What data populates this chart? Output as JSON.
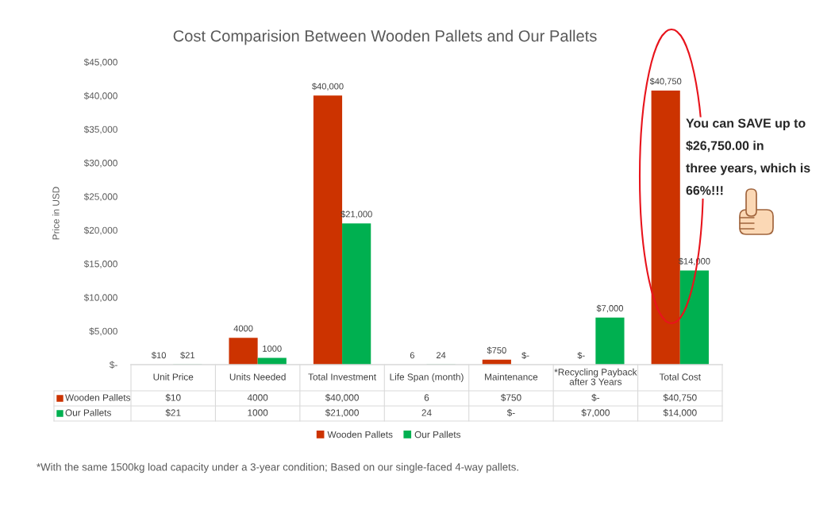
{
  "chart_data": {
    "type": "bar",
    "title": "Cost Comparision Between Wooden Pallets and Our Pallets",
    "ylabel": "Price in USD",
    "categories": [
      "Unit Price",
      "Units Needed",
      "Total Investment",
      "Life Span (month)",
      "Maintenance",
      "*Recycling Payback\nafter 3 Years",
      "Total Cost"
    ],
    "series": [
      {
        "name": "Wooden Pallets",
        "color": "#cc3300",
        "values": [
          10,
          4000,
          40000,
          6,
          750,
          0,
          40750
        ],
        "value_labels": [
          "$10",
          "4000",
          "$40,000",
          "6",
          "$750",
          "$-",
          "$40,750"
        ]
      },
      {
        "name": "Our Pallets",
        "color": "#00b050",
        "values": [
          21,
          1000,
          21000,
          24,
          0,
          7000,
          14000
        ],
        "value_labels": [
          "$21",
          "1000",
          "$21,000",
          "24",
          "$-",
          "$7,000",
          "$14,000"
        ]
      }
    ],
    "ylim": [
      0,
      45000
    ],
    "yticks": [
      {
        "value": 0,
        "label": "$-"
      },
      {
        "value": 5000,
        "label": "$5,000"
      },
      {
        "value": 10000,
        "label": "$10,000"
      },
      {
        "value": 15000,
        "label": "$15,000"
      },
      {
        "value": 20000,
        "label": "$20,000"
      },
      {
        "value": 25000,
        "label": "$25,000"
      },
      {
        "value": 30000,
        "label": "$30,000"
      },
      {
        "value": 35000,
        "label": "$35,000"
      },
      {
        "value": 40000,
        "label": "$40,000"
      },
      {
        "value": 45000,
        "label": "$45,000"
      }
    ],
    "grid": false,
    "legend": "bottom",
    "annotations": [
      "You can SAVE up to\n$26,750.00 in\nthree years, which is\n66%!!!",
      "*With the same 1500kg load capacity under a 3-year condition; Based on our single-faced 4-way pallets."
    ]
  }
}
